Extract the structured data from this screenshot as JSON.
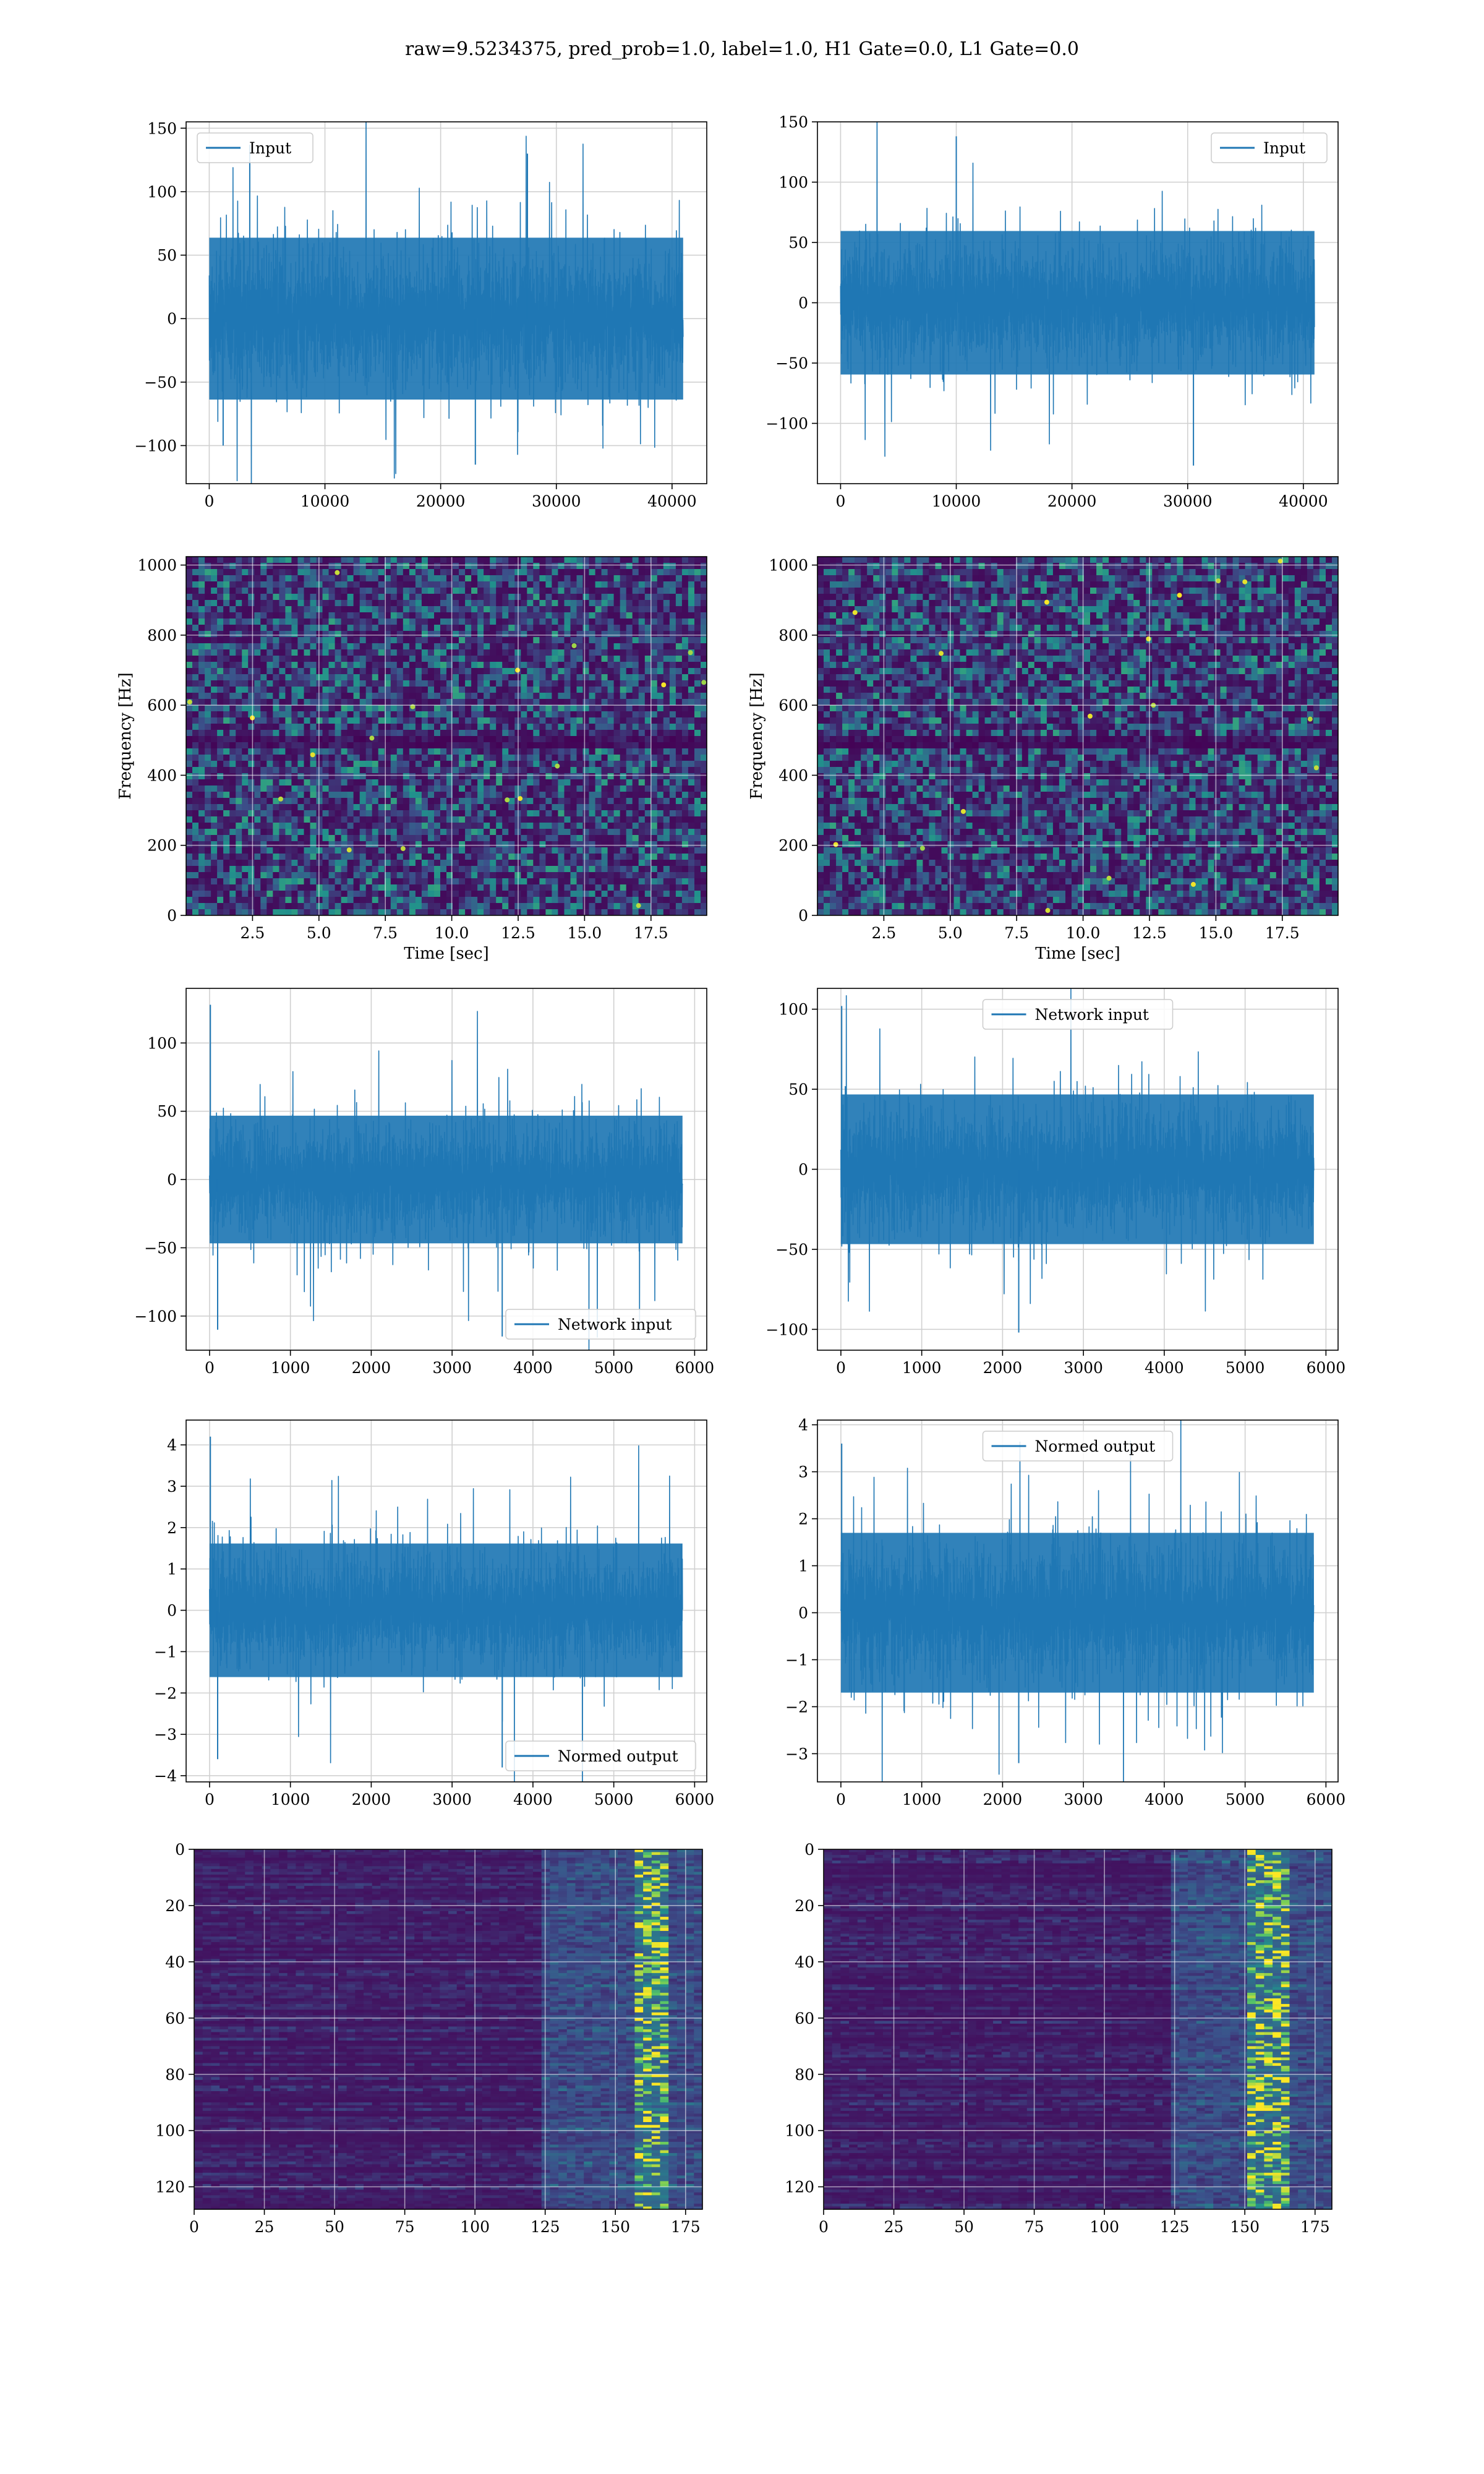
{
  "figure": {
    "title": "raw=9.5234375, pred_prob=1.0, label=1.0, H1 Gate=0.0, L1 Gate=0.0"
  },
  "colors": {
    "line": "#1f77b4",
    "grid": "#d0d0d0",
    "spectrogram_bg": "#3b0f5e"
  },
  "chart_data": [
    {
      "id": "input-h1",
      "type": "line",
      "title": "",
      "xlabel": "",
      "ylabel": "",
      "xlim": [
        -2000,
        43000
      ],
      "ylim": [
        -130,
        155
      ],
      "xticks": [
        0,
        10000,
        20000,
        30000,
        40000
      ],
      "xtick_labels": [
        "0",
        "10000",
        "20000",
        "30000",
        "40000"
      ],
      "yticks": [
        -100,
        -50,
        0,
        50,
        100,
        150
      ],
      "ytick_labels": [
        "−100",
        "−50",
        "0",
        "50",
        "100",
        "150"
      ],
      "legend": {
        "label": "Input",
        "placement": "upper-left"
      },
      "grid": true,
      "series": [
        {
          "name": "Input",
          "x_range": [
            0,
            40960
          ],
          "points": 40960,
          "typical_envelope": [
            -75,
            75
          ],
          "spikes": [
            [
              3500,
              137
            ],
            [
              27500,
              130
            ],
            [
              1200,
              -100
            ],
            [
              23000,
              -115
            ]
          ]
        }
      ]
    },
    {
      "id": "input-l1",
      "type": "line",
      "title": "",
      "xlabel": "",
      "ylabel": "",
      "xlim": [
        -2000,
        43000
      ],
      "ylim": [
        -150,
        150
      ],
      "xticks": [
        0,
        10000,
        20000,
        30000,
        40000
      ],
      "xtick_labels": [
        "0",
        "10000",
        "20000",
        "30000",
        "40000"
      ],
      "yticks": [
        -100,
        -50,
        0,
        50,
        100,
        150
      ],
      "ytick_labels": [
        "−100",
        "−50",
        "0",
        "50",
        "100",
        "150"
      ],
      "legend": {
        "label": "Input",
        "placement": "upper-right"
      },
      "grid": true,
      "series": [
        {
          "name": "Input",
          "x_range": [
            0,
            40960
          ],
          "points": 40960,
          "typical_envelope": [
            -70,
            70
          ],
          "spikes": [
            [
              10000,
              138
            ],
            [
              30500,
              -135
            ]
          ]
        }
      ]
    },
    {
      "id": "spectrogram-h1",
      "type": "heatmap",
      "title": "",
      "xlabel": "Time [sec]",
      "ylabel": "Frequency [Hz]",
      "xlim": [
        0,
        19.6
      ],
      "ylim": [
        0,
        1024
      ],
      "xticks": [
        2.5,
        5.0,
        7.5,
        10.0,
        12.5,
        15.0,
        17.5
      ],
      "xtick_labels": [
        "2.5",
        "5.0",
        "7.5",
        "10.0",
        "12.5",
        "15.0",
        "17.5"
      ],
      "yticks": [
        0,
        200,
        400,
        600,
        800,
        1000
      ],
      "ytick_labels": [
        "0",
        "200",
        "400",
        "600",
        "800",
        "1000"
      ],
      "grid": true,
      "colormap": "viridis",
      "features": {
        "dark_band_hz": [
          480,
          520
        ]
      }
    },
    {
      "id": "spectrogram-l1",
      "type": "heatmap",
      "title": "",
      "xlabel": "Time [sec]",
      "ylabel": "Frequency [Hz]",
      "xlim": [
        0,
        19.6
      ],
      "ylim": [
        0,
        1024
      ],
      "xticks": [
        2.5,
        5.0,
        7.5,
        10.0,
        12.5,
        15.0,
        17.5
      ],
      "xtick_labels": [
        "2.5",
        "5.0",
        "7.5",
        "10.0",
        "12.5",
        "15.0",
        "17.5"
      ],
      "yticks": [
        0,
        200,
        400,
        600,
        800,
        1000
      ],
      "ytick_labels": [
        "0",
        "200",
        "400",
        "600",
        "800",
        "1000"
      ],
      "grid": true,
      "colormap": "viridis",
      "features": {
        "dark_band_hz": [
          480,
          520
        ]
      }
    },
    {
      "id": "network-input-h1",
      "type": "line",
      "title": "",
      "xlabel": "",
      "ylabel": "",
      "xlim": [
        -290,
        6150
      ],
      "ylim": [
        -125,
        140
      ],
      "xticks": [
        0,
        1000,
        2000,
        3000,
        4000,
        5000,
        6000
      ],
      "xtick_labels": [
        "0",
        "1000",
        "2000",
        "3000",
        "4000",
        "5000",
        "6000"
      ],
      "yticks": [
        -100,
        -50,
        0,
        50,
        100
      ],
      "ytick_labels": [
        "−100",
        "−50",
        "0",
        "50",
        "100"
      ],
      "legend": {
        "label": "Network input",
        "placement": "lower-right"
      },
      "grid": true,
      "series": [
        {
          "name": "Network input",
          "x_range": [
            0,
            5850
          ],
          "points": 5850,
          "typical_envelope": [
            -55,
            55
          ],
          "spikes": [
            [
              10,
              128
            ],
            [
              100,
              -110
            ],
            [
              3620,
              -115
            ]
          ]
        }
      ]
    },
    {
      "id": "network-input-l1",
      "type": "line",
      "title": "",
      "xlabel": "",
      "ylabel": "",
      "xlim": [
        -290,
        6150
      ],
      "ylim": [
        -113,
        113
      ],
      "xticks": [
        0,
        1000,
        2000,
        3000,
        4000,
        5000,
        6000
      ],
      "xtick_labels": [
        "0",
        "1000",
        "2000",
        "3000",
        "4000",
        "5000",
        "6000"
      ],
      "yticks": [
        -100,
        -50,
        0,
        50,
        100
      ],
      "ytick_labels": [
        "−100",
        "−50",
        "0",
        "50",
        "100"
      ],
      "legend": {
        "label": "Network input",
        "placement": "upper-center"
      },
      "grid": true,
      "series": [
        {
          "name": "Network input",
          "x_range": [
            0,
            5850
          ],
          "points": 5850,
          "typical_envelope": [
            -55,
            55
          ],
          "spikes": [
            [
              10,
              102
            ],
            [
              2200,
              -102
            ]
          ]
        }
      ]
    },
    {
      "id": "normed-output-h1",
      "type": "line",
      "title": "",
      "xlabel": "",
      "ylabel": "",
      "xlim": [
        -290,
        6150
      ],
      "ylim": [
        -4.15,
        4.6
      ],
      "xticks": [
        0,
        1000,
        2000,
        3000,
        4000,
        5000,
        6000
      ],
      "xtick_labels": [
        "0",
        "1000",
        "2000",
        "3000",
        "4000",
        "5000",
        "6000"
      ],
      "yticks": [
        -4,
        -3,
        -2,
        -1,
        0,
        1,
        2,
        3,
        4
      ],
      "ytick_labels": [
        "−4",
        "−3",
        "−2",
        "−1",
        "0",
        "1",
        "2",
        "3",
        "4"
      ],
      "legend": {
        "label": "Normed output",
        "placement": "lower-right"
      },
      "grid": true,
      "series": [
        {
          "name": "Normed output",
          "x_range": [
            0,
            5850
          ],
          "points": 5850,
          "typical_envelope": [
            -1.9,
            1.9
          ],
          "spikes": [
            [
              10,
              4.2
            ],
            [
              100,
              -3.6
            ],
            [
              3620,
              -3.8
            ]
          ]
        }
      ]
    },
    {
      "id": "normed-output-l1",
      "type": "line",
      "title": "",
      "xlabel": "",
      "ylabel": "",
      "xlim": [
        -290,
        6150
      ],
      "ylim": [
        -3.6,
        4.1
      ],
      "xticks": [
        0,
        1000,
        2000,
        3000,
        4000,
        5000,
        6000
      ],
      "xtick_labels": [
        "0",
        "1000",
        "2000",
        "3000",
        "4000",
        "5000",
        "6000"
      ],
      "yticks": [
        -3,
        -2,
        -1,
        0,
        1,
        2,
        3,
        4
      ],
      "ytick_labels": [
        "−3",
        "−2",
        "−1",
        "0",
        "1",
        "2",
        "3",
        "4"
      ],
      "legend": {
        "label": "Normed output",
        "placement": "upper-center"
      },
      "grid": true,
      "series": [
        {
          "name": "Normed output",
          "x_range": [
            0,
            5850
          ],
          "points": 5850,
          "typical_envelope": [
            -2.0,
            2.0
          ],
          "spikes": [
            [
              10,
              3.6
            ],
            [
              2200,
              -3.2
            ]
          ]
        }
      ]
    },
    {
      "id": "feature-map-h1",
      "type": "heatmap",
      "title": "",
      "xlabel": "",
      "ylabel": "",
      "xlim": [
        0,
        181
      ],
      "ylim": [
        128,
        0
      ],
      "xticks": [
        0,
        25,
        50,
        75,
        100,
        125,
        150,
        175
      ],
      "xtick_labels": [
        "0",
        "25",
        "50",
        "75",
        "100",
        "125",
        "150",
        "175"
      ],
      "yticks": [
        0,
        20,
        40,
        60,
        80,
        100,
        120
      ],
      "ytick_labels": [
        "0",
        "20",
        "40",
        "60",
        "80",
        "100",
        "120"
      ],
      "grid": true,
      "colormap": "viridis",
      "features": {
        "bright_columns": [
          156,
          168
        ],
        "soft_region_from": 125
      }
    },
    {
      "id": "feature-map-l1",
      "type": "heatmap",
      "title": "",
      "xlabel": "",
      "ylabel": "",
      "xlim": [
        0,
        181
      ],
      "ylim": [
        128,
        0
      ],
      "xticks": [
        0,
        25,
        50,
        75,
        100,
        125,
        150,
        175
      ],
      "xtick_labels": [
        "0",
        "25",
        "50",
        "75",
        "100",
        "125",
        "150",
        "175"
      ],
      "yticks": [
        0,
        20,
        40,
        60,
        80,
        100,
        120
      ],
      "ytick_labels": [
        "0",
        "20",
        "40",
        "60",
        "80",
        "100",
        "120"
      ],
      "grid": true,
      "colormap": "viridis",
      "features": {
        "bright_columns": [
          152,
          166
        ],
        "soft_region_from": 125
      }
    }
  ]
}
